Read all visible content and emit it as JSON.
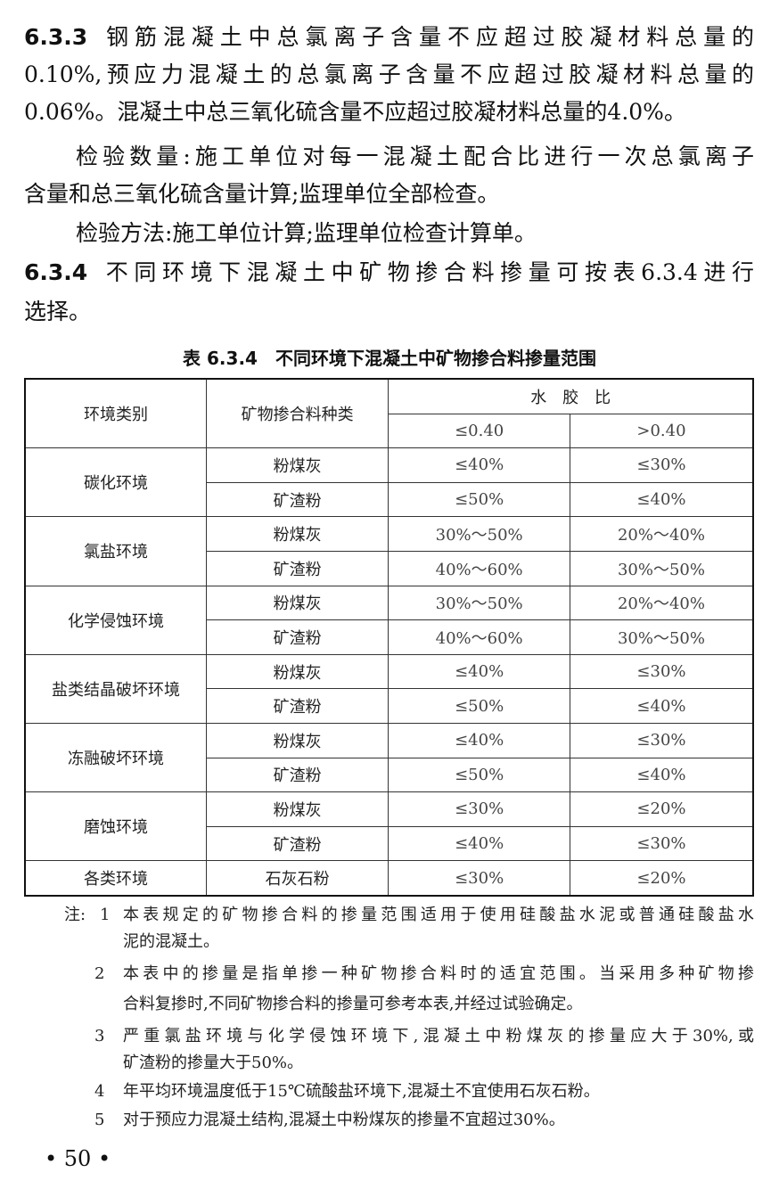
{
  "body": {
    "s633": {
      "num": "6.3.3",
      "lines": [
        "钢筋混凝土中总氯离子含量不应超过胶凝材料总量的",
        "0.10%,预应力混凝土的总氯离子含量不应超过胶凝材料总量的",
        "0.06%。混凝土中总三氧化硫含量不应超过胶凝材料总量的4.0%。"
      ]
    },
    "qty": [
      "检验数量:施工单位对每一混凝土配合比进行一次总氯离子",
      "含量和总三氧化硫含量计算;监理单位全部检查。"
    ],
    "method": "检验方法:施工单位计算;监理单位检查计算单。",
    "s634": {
      "num": "6.3.4",
      "lines": [
        "不同环境下混凝土中矿物掺合料掺量可按表6.3.4进行",
        "选择。"
      ]
    }
  },
  "table": {
    "caption": "表 6.3.4　不同环境下混凝土中矿物掺合料掺量范围",
    "headers": {
      "env": "环境类别",
      "mineral": "矿物掺合料种类",
      "ratio": "水　胶　比",
      "le": "≤0.40",
      "gt": ">0.40"
    },
    "groups": [
      {
        "env": "碳化环境",
        "rows": [
          [
            "粉煤灰",
            "≤40%",
            "≤30%"
          ],
          [
            "矿渣粉",
            "≤50%",
            "≤40%"
          ]
        ]
      },
      {
        "env": "氯盐环境",
        "rows": [
          [
            "粉煤灰",
            "30%～50%",
            "20%～40%"
          ],
          [
            "矿渣粉",
            "40%～60%",
            "30%～50%"
          ]
        ]
      },
      {
        "env": "化学侵蚀环境",
        "rows": [
          [
            "粉煤灰",
            "30%～50%",
            "20%～40%"
          ],
          [
            "矿渣粉",
            "40%～60%",
            "30%～50%"
          ]
        ]
      },
      {
        "env": "盐类结晶破坏环境",
        "rows": [
          [
            "粉煤灰",
            "≤40%",
            "≤30%"
          ],
          [
            "矿渣粉",
            "≤50%",
            "≤40%"
          ]
        ]
      },
      {
        "env": "冻融破坏环境",
        "rows": [
          [
            "粉煤灰",
            "≤40%",
            "≤30%"
          ],
          [
            "矿渣粉",
            "≤50%",
            "≤40%"
          ]
        ]
      },
      {
        "env": "磨蚀环境",
        "rows": [
          [
            "粉煤灰",
            "≤30%",
            "≤20%"
          ],
          [
            "矿渣粉",
            "≤40%",
            "≤30%"
          ]
        ]
      },
      {
        "env": "各类环境",
        "rows": [
          [
            "石灰石粉",
            "≤30%",
            "≤20%"
          ]
        ]
      }
    ]
  },
  "notes": {
    "prefix": "注:",
    "items": [
      {
        "n": "1",
        "lines": [
          "本表规定的矿物掺合料的掺量范围适用于使用硅酸盐水泥或普通硅酸盐水",
          "泥的混凝土。"
        ]
      },
      {
        "n": "2",
        "lines": [
          "本表中的掺量是指单掺一种矿物掺合料时的适宜范围。当采用多种矿物掺",
          "合料复掺时,不同矿物掺合料的掺量可参考本表,并经过试验确定。"
        ]
      },
      {
        "n": "3",
        "lines": [
          "严重氯盐环境与化学侵蚀环境下,混凝土中粉煤灰的掺量应大于30%,或",
          "矿渣粉的掺量大于50%。"
        ]
      },
      {
        "n": "4",
        "lines": [
          "年平均环境温度低于15℃硫酸盐环境下,混凝土不宜使用石灰石粉。"
        ]
      },
      {
        "n": "5",
        "lines": [
          "对于预应力混凝土结构,混凝土中粉煤灰的掺量不宜超过30%。"
        ]
      }
    ]
  },
  "page_number": "• 50 •"
}
